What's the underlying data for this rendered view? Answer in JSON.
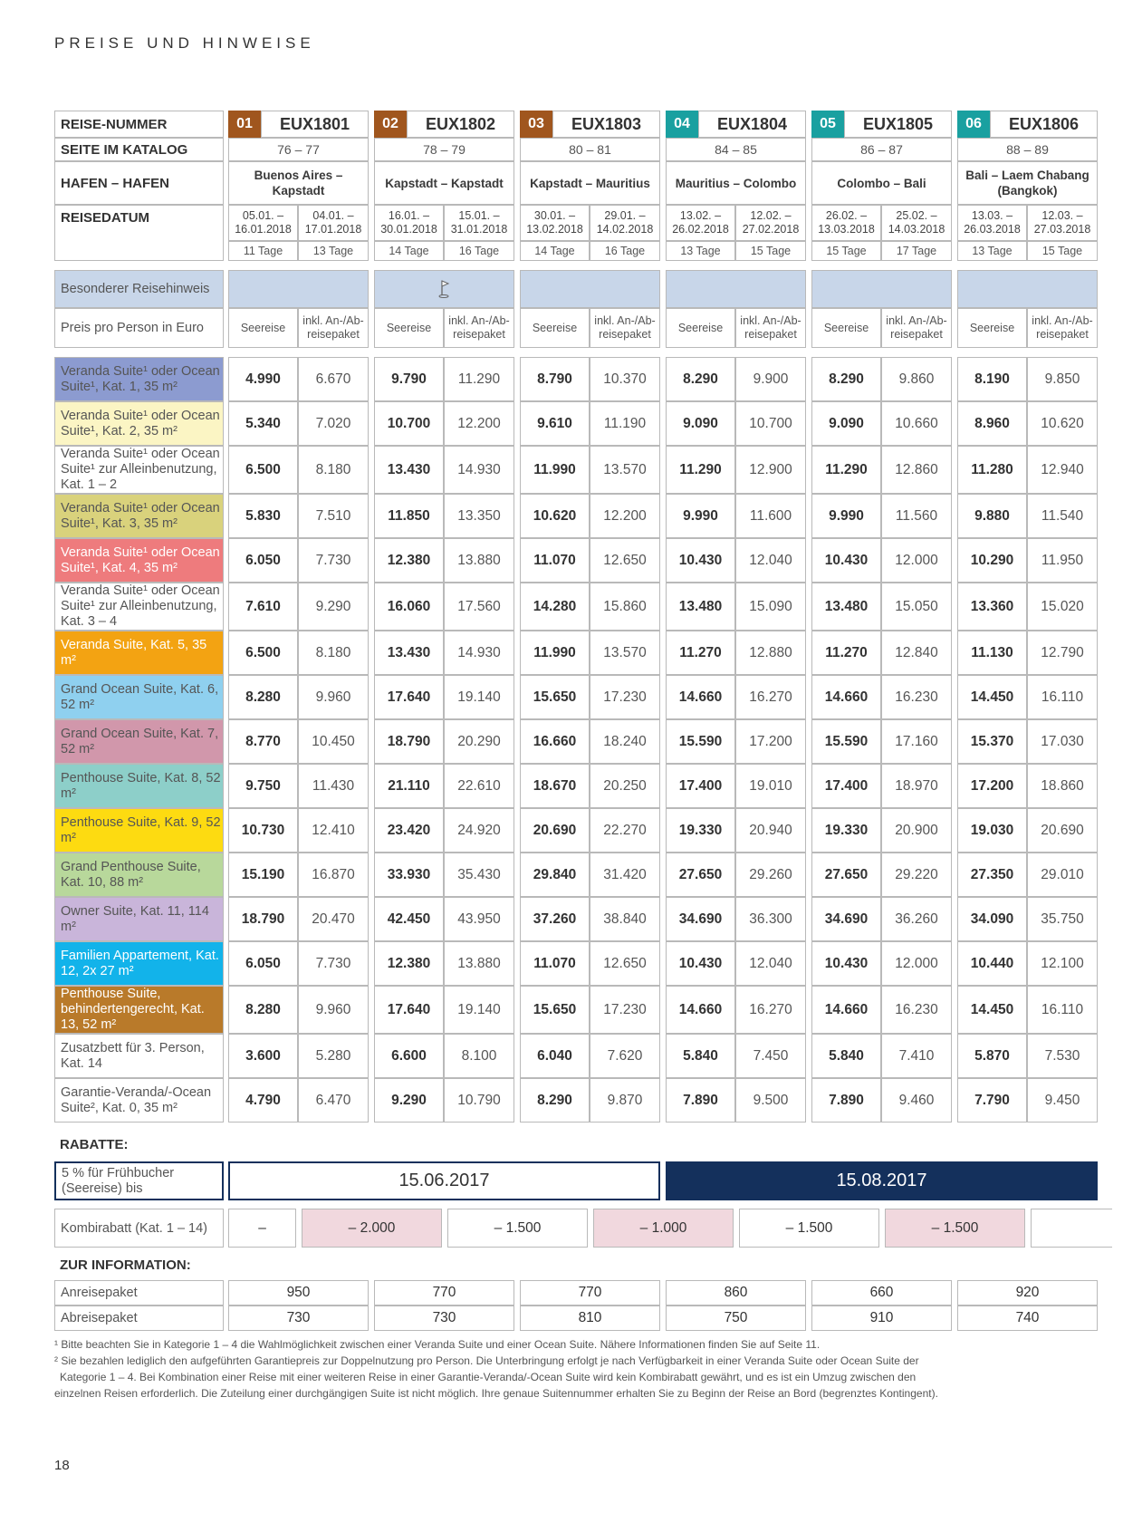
{
  "page_title": "PREISE UND HINWEISE",
  "page_number": "18",
  "header_labels": {
    "reise_nummer": "REISE-NUMMER",
    "seite": "SEITE IM KATALOG",
    "hafen": "HAFEN – HAFEN",
    "datum": "REISEDATUM"
  },
  "colors": {
    "trip_badges": [
      "#a0561e",
      "#a0561e",
      "#a0561e",
      "#1aa0a0",
      "#1aa0a0",
      "#1aa0a0"
    ],
    "navy": "#14305c",
    "light_blue": "#c8d6e9",
    "pink": "#f1d8de"
  },
  "trips": [
    {
      "num": "01",
      "code": "EUX1801",
      "pages": "76 – 77",
      "port": "Buenos Aires – Kapstadt",
      "d1": "05.01. – 16.01.2018",
      "d2": "04.01. – 17.01.2018",
      "days1": "11 Tage",
      "days2": "13 Tage"
    },
    {
      "num": "02",
      "code": "EUX1802",
      "pages": "78 – 79",
      "port": "Kapstadt – Kapstadt",
      "d1": "16.01. – 30.01.2018",
      "d2": "15.01. – 31.01.2018",
      "days1": "14 Tage",
      "days2": "16 Tage"
    },
    {
      "num": "03",
      "code": "EUX1803",
      "pages": "80 – 81",
      "port": "Kapstadt – Mauritius",
      "d1": "30.01. – 13.02.2018",
      "d2": "29.01. – 14.02.2018",
      "days1": "14 Tage",
      "days2": "16 Tage"
    },
    {
      "num": "04",
      "code": "EUX1804",
      "pages": "84 – 85",
      "port": "Mauritius – Colombo",
      "d1": "13.02. – 26.02.2018",
      "d2": "12.02. – 27.02.2018",
      "days1": "13 Tage",
      "days2": "15 Tage"
    },
    {
      "num": "05",
      "code": "EUX1805",
      "pages": "86 – 87",
      "port": "Colombo – Bali",
      "d1": "26.02. – 13.03.2018",
      "d2": "25.02. – 14.03.2018",
      "days1": "15 Tage",
      "days2": "17 Tage"
    },
    {
      "num": "06",
      "code": "EUX1806",
      "pages": "88 – 89",
      "port": "Bali – Laem Chabang (Bangkok)",
      "d1": "13.03. – 26.03.2018",
      "d2": "12.03. – 27.03.2018",
      "days1": "13 Tage",
      "days2": "15 Tage"
    }
  ],
  "besonderer_label": "Besonderer Reisehinweis",
  "preis_label": "Preis pro Person in Euro",
  "col_seereise": "Seereise",
  "col_inkl": "inkl. An-/Ab-reisepaket",
  "categories": [
    {
      "label": "Veranda Suite¹ oder Ocean Suite¹, Kat. 1, 35 m²",
      "color": "#8c9bd0",
      "prices": [
        "4.990",
        "6.670",
        "9.790",
        "11.290",
        "8.790",
        "10.370",
        "8.290",
        "9.900",
        "8.290",
        "9.860",
        "8.190",
        "9.850"
      ]
    },
    {
      "label": "Veranda Suite¹ oder Ocean Suite¹, Kat. 2, 35 m²",
      "color": "#fbf5c4",
      "prices": [
        "5.340",
        "7.020",
        "10.700",
        "12.200",
        "9.610",
        "11.190",
        "9.090",
        "10.700",
        "9.090",
        "10.660",
        "8.960",
        "10.620"
      ]
    },
    {
      "label": "Veranda Suite¹ oder Ocean Suite¹ zur Alleinbenutzung, Kat. 1 – 2",
      "color": "#ffffff",
      "prices": [
        "6.500",
        "8.180",
        "13.430",
        "14.930",
        "11.990",
        "13.570",
        "11.290",
        "12.900",
        "11.290",
        "12.860",
        "11.280",
        "12.940"
      ]
    },
    {
      "label": "Veranda Suite¹ oder Ocean Suite¹, Kat. 3, 35 m²",
      "color": "#d9d27c",
      "prices": [
        "5.830",
        "7.510",
        "11.850",
        "13.350",
        "10.620",
        "12.200",
        "9.990",
        "11.600",
        "9.990",
        "11.560",
        "9.880",
        "11.540"
      ]
    },
    {
      "label": "Veranda Suite¹ oder Ocean Suite¹, Kat. 4, 35 m²",
      "color": "#ee7b7d",
      "prices": [
        "6.050",
        "7.730",
        "12.380",
        "13.880",
        "11.070",
        "12.650",
        "10.430",
        "12.040",
        "10.430",
        "12.000",
        "10.290",
        "11.950"
      ]
    },
    {
      "label": "Veranda Suite¹ oder Ocean Suite¹ zur Alleinbenutzung, Kat. 3 – 4",
      "color": "#ffffff",
      "prices": [
        "7.610",
        "9.290",
        "16.060",
        "17.560",
        "14.280",
        "15.860",
        "13.480",
        "15.090",
        "13.480",
        "15.050",
        "13.360",
        "15.020"
      ]
    },
    {
      "label": "Veranda Suite, Kat. 5, 35 m²",
      "color": "#f3a312",
      "prices": [
        "6.500",
        "8.180",
        "13.430",
        "14.930",
        "11.990",
        "13.570",
        "11.270",
        "12.880",
        "11.270",
        "12.840",
        "11.130",
        "12.790"
      ]
    },
    {
      "label": "Grand Ocean Suite, Kat. 6, 52 m²",
      "color": "#8fd0ef",
      "prices": [
        "8.280",
        "9.960",
        "17.640",
        "19.140",
        "15.650",
        "17.230",
        "14.660",
        "16.270",
        "14.660",
        "16.230",
        "14.450",
        "16.110"
      ]
    },
    {
      "label": "Grand Ocean Suite, Kat. 7, 52 m²",
      "color": "#d197ab",
      "prices": [
        "8.770",
        "10.450",
        "18.790",
        "20.290",
        "16.660",
        "18.240",
        "15.590",
        "17.200",
        "15.590",
        "17.160",
        "15.370",
        "17.030"
      ]
    },
    {
      "label": "Penthouse Suite, Kat. 8, 52 m²",
      "color": "#8dcfc9",
      "prices": [
        "9.750",
        "11.430",
        "21.110",
        "22.610",
        "18.670",
        "20.250",
        "17.400",
        "19.010",
        "17.400",
        "18.970",
        "17.200",
        "18.860"
      ]
    },
    {
      "label": "Penthouse Suite, Kat. 9, 52 m²",
      "color": "#fddb11",
      "prices": [
        "10.730",
        "12.410",
        "23.420",
        "24.920",
        "20.690",
        "22.270",
        "19.330",
        "20.940",
        "19.330",
        "20.900",
        "19.030",
        "20.690"
      ]
    },
    {
      "label": "Grand Penthouse Suite, Kat. 10, 88 m²",
      "color": "#b8d89b",
      "prices": [
        "15.190",
        "16.870",
        "33.930",
        "35.430",
        "29.840",
        "31.420",
        "27.650",
        "29.260",
        "27.650",
        "29.220",
        "27.350",
        "29.010"
      ]
    },
    {
      "label": "Owner Suite, Kat. 11, 114 m²",
      "color": "#c9b5da",
      "prices": [
        "18.790",
        "20.470",
        "42.450",
        "43.950",
        "37.260",
        "38.840",
        "34.690",
        "36.300",
        "34.690",
        "36.260",
        "34.090",
        "35.750"
      ]
    },
    {
      "label": "Familien Appartement, Kat. 12, 2x 27 m²",
      "color": "#12b3ea",
      "prices": [
        "6.050",
        "7.730",
        "12.380",
        "13.880",
        "11.070",
        "12.650",
        "10.430",
        "12.040",
        "10.430",
        "12.000",
        "10.440",
        "12.100"
      ]
    },
    {
      "label": "Penthouse Suite, behindertengerecht, Kat. 13, 52 m²",
      "color": "#b97a2a",
      "prices": [
        "8.280",
        "9.960",
        "17.640",
        "19.140",
        "15.650",
        "17.230",
        "14.660",
        "16.270",
        "14.660",
        "16.230",
        "14.450",
        "16.110"
      ]
    },
    {
      "label": "Zusatzbett für 3. Person, Kat. 14",
      "color": "#ffffff",
      "prices": [
        "3.600",
        "5.280",
        "6.600",
        "8.100",
        "6.040",
        "7.620",
        "5.840",
        "7.450",
        "5.840",
        "7.410",
        "5.870",
        "7.530"
      ]
    },
    {
      "label": "Garantie-Veranda/-Ocean Suite², Kat. 0, 35 m²",
      "color": "#ffffff",
      "prices": [
        "4.790",
        "6.470",
        "9.290",
        "10.790",
        "8.290",
        "9.870",
        "7.890",
        "9.500",
        "7.890",
        "9.460",
        "7.790",
        "9.450"
      ]
    }
  ],
  "rabatte": {
    "title": "RABATTE:",
    "fruehbucher_label": "5 % für Frühbucher (Seereise) bis",
    "date1": "15.06.2017",
    "date2": "15.08.2017",
    "kombi_label": "Kombirabatt (Kat. 1 – 14)",
    "kombi_values": [
      "–",
      "– 2.000",
      "– 1.500",
      "– 1.000",
      "– 1.500",
      "– 1.500"
    ]
  },
  "info": {
    "title": "ZUR INFORMATION:",
    "anreise_label": "Anreisepaket",
    "abreise_label": "Abreisepaket",
    "anreise": [
      "950",
      "770",
      "770",
      "860",
      "660",
      "920"
    ],
    "abreise": [
      "730",
      "730",
      "810",
      "750",
      "910",
      "740"
    ]
  },
  "footnotes": {
    "f1": "¹ Bitte beachten Sie in Kategorie 1 – 4 die Wahlmöglichkeit zwischen einer Veranda Suite und einer Ocean Suite. Nähere Informationen finden Sie auf Seite 11.",
    "f2a": "² Sie bezahlen lediglich den aufgeführten Garantiepreis zur Doppelnutzung pro Person. Die Unterbringung erfolgt je nach Verfügbarkeit in einer Veranda Suite oder Ocean Suite der",
    "f2b": "Kategorie 1 – 4. Bei Kombination einer Reise mit einer weiteren Reise in einer Garantie-Veranda/-Ocean Suite wird kein Kombirabatt gewährt, und es ist ein Umzug zwischen den",
    "f2c": "einzelnen Reisen erforderlich. Die Zuteilung einer durchgängigen Suite ist nicht möglich. Ihre genaue Suitennummer erhalten Sie zu Beginn der Reise an Bord (begrenztes Kontingent)."
  }
}
